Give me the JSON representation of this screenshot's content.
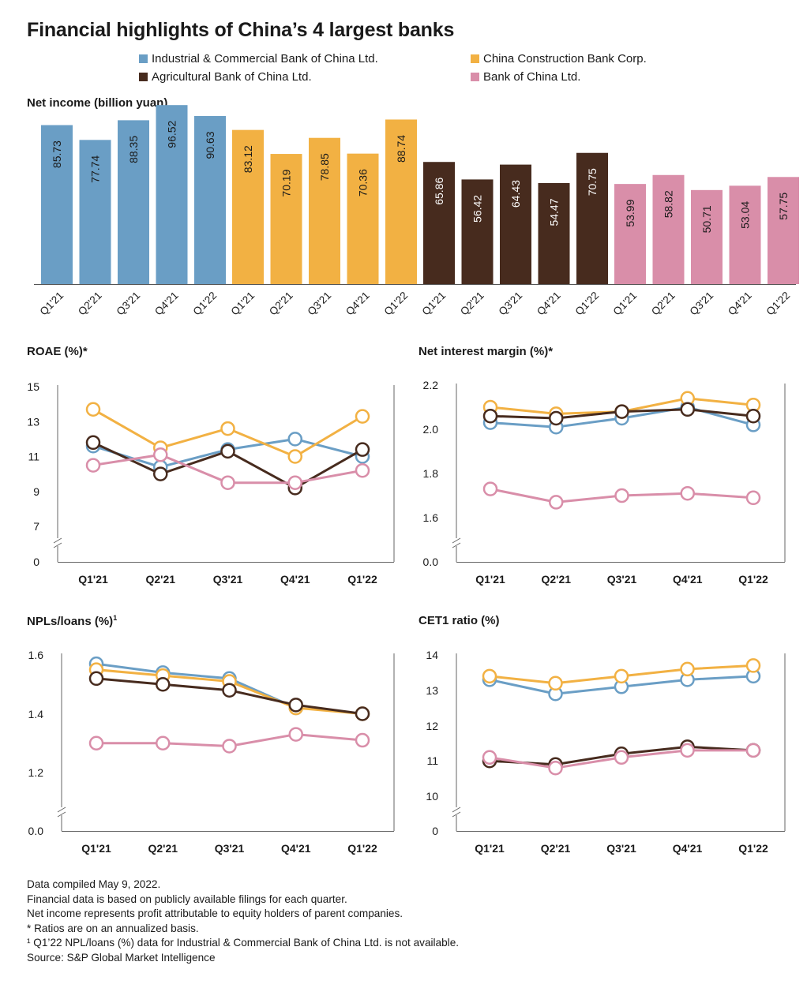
{
  "title": "Financial highlights of China’s 4 largest banks",
  "legend": [
    {
      "label": "Industrial & Commercial Bank of China Ltd.",
      "color": "#6a9ec5"
    },
    {
      "label": "China Construction Bank Corp.",
      "color": "#f2b143"
    },
    {
      "label": "Agricultural Bank of China Ltd.",
      "color": "#472b1e"
    },
    {
      "label": "Bank of China Ltd.",
      "color": "#d98ea9"
    }
  ],
  "sections": {
    "net_income": "Net income (billion yuan)",
    "roae": "ROAE (%)*",
    "nim": "Net interest margin (%)*",
    "npl": "NPLs/loans (%)",
    "npl_sup": "1",
    "cet1": "CET1 ratio (%)"
  },
  "notes": [
    "Data compiled May 9, 2022.",
    "Financial data is based on publicly available filings for each quarter.",
    "Net income represents profit attributable to equity holders of parent companies.",
    "* Ratios are on an annualized basis.",
    "¹ Q1’22 NPL/loans (%) data for Industrial & Commercial Bank of China Ltd. is not available.",
    "Source: S&P Global Market Intelligence"
  ],
  "chart_data": [
    {
      "type": "bar",
      "title": "Net income (billion yuan)",
      "categories": [
        "Q1'21",
        "Q2'21",
        "Q3'21",
        "Q4'21",
        "Q1'22"
      ],
      "series": [
        {
          "name": "Industrial & Commercial Bank of China Ltd.",
          "color": "#6a9ec5",
          "values": [
            85.73,
            77.74,
            88.35,
            96.52,
            90.63
          ]
        },
        {
          "name": "China Construction Bank Corp.",
          "color": "#f2b143",
          "values": [
            83.12,
            70.19,
            78.85,
            70.36,
            88.74
          ]
        },
        {
          "name": "Agricultural Bank of China Ltd.",
          "color": "#472b1e",
          "values": [
            65.86,
            56.42,
            64.43,
            54.47,
            70.75
          ]
        },
        {
          "name": "Bank of China Ltd.",
          "color": "#d98ea9",
          "values": [
            53.99,
            58.82,
            50.71,
            53.04,
            57.75
          ]
        }
      ],
      "value_labels": [
        [
          "85.73",
          "77.74",
          "88.35",
          "96.52",
          "90.63"
        ],
        [
          "83.12",
          "70.19",
          "78.85",
          "70.36",
          "88.74"
        ],
        [
          "65.86",
          "56.42",
          "64.43",
          "54.47",
          "70.75"
        ],
        [
          "53.99",
          "58.82",
          "50.71",
          "53.04",
          "57.75"
        ]
      ],
      "ylim": [
        0,
        100
      ]
    },
    {
      "type": "line",
      "title": "ROAE (%)*",
      "categories": [
        "Q1'21",
        "Q2'21",
        "Q3'21",
        "Q4'21",
        "Q1'22"
      ],
      "yticks": [
        "15",
        "13",
        "11",
        "9",
        "7",
        "0"
      ],
      "ylim": [
        6,
        15
      ],
      "axis_break": true,
      "series": [
        {
          "name": "Industrial & Commercial Bank of China Ltd.",
          "color": "#6a9ec5",
          "values": [
            11.6,
            10.4,
            11.4,
            12.0,
            11.0
          ]
        },
        {
          "name": "China Construction Bank Corp.",
          "color": "#f2b143",
          "values": [
            13.7,
            11.5,
            12.6,
            11.0,
            13.3
          ]
        },
        {
          "name": "Agricultural Bank of China Ltd.",
          "color": "#472b1e",
          "values": [
            11.8,
            10.0,
            11.3,
            9.2,
            11.4
          ]
        },
        {
          "name": "Bank of China Ltd.",
          "color": "#d98ea9",
          "values": [
            10.5,
            11.1,
            9.5,
            9.5,
            10.2
          ]
        }
      ]
    },
    {
      "type": "line",
      "title": "Net interest margin (%)*",
      "categories": [
        "Q1'21",
        "Q2'21",
        "Q3'21",
        "Q4'21",
        "Q1'22"
      ],
      "yticks": [
        "2.2",
        "2.0",
        "1.8",
        "1.6",
        "0.0"
      ],
      "ylim": [
        1.5,
        2.2
      ],
      "axis_break": true,
      "series": [
        {
          "name": "Industrial & Commercial Bank of China Ltd.",
          "color": "#6a9ec5",
          "values": [
            2.03,
            2.01,
            2.05,
            2.1,
            2.02
          ]
        },
        {
          "name": "China Construction Bank Corp.",
          "color": "#f2b143",
          "values": [
            2.1,
            2.07,
            2.08,
            2.14,
            2.11
          ]
        },
        {
          "name": "Agricultural Bank of China Ltd.",
          "color": "#472b1e",
          "values": [
            2.06,
            2.05,
            2.08,
            2.09,
            2.06
          ]
        },
        {
          "name": "Bank of China Ltd.",
          "color": "#d98ea9",
          "values": [
            1.73,
            1.67,
            1.7,
            1.71,
            1.69
          ]
        }
      ]
    },
    {
      "type": "line",
      "title": "NPLs/loans (%)¹",
      "categories": [
        "Q1'21",
        "Q2'21",
        "Q3'21",
        "Q4'21",
        "Q1'22"
      ],
      "yticks": [
        "1.6",
        "1.4",
        "1.2",
        "0.0"
      ],
      "ylim": [
        1.1,
        1.6
      ],
      "axis_break": true,
      "series": [
        {
          "name": "Industrial & Commercial Bank of China Ltd.",
          "color": "#6a9ec5",
          "values": [
            1.57,
            1.54,
            1.52,
            1.42,
            null
          ]
        },
        {
          "name": "China Construction Bank Corp.",
          "color": "#f2b143",
          "values": [
            1.55,
            1.53,
            1.51,
            1.42,
            1.4
          ]
        },
        {
          "name": "Agricultural Bank of China Ltd.",
          "color": "#472b1e",
          "values": [
            1.52,
            1.5,
            1.48,
            1.43,
            1.4
          ]
        },
        {
          "name": "Bank of China Ltd.",
          "color": "#d98ea9",
          "values": [
            1.3,
            1.3,
            1.29,
            1.33,
            1.31
          ]
        }
      ]
    },
    {
      "type": "line",
      "title": "CET1 ratio (%)",
      "categories": [
        "Q1'21",
        "Q2'21",
        "Q3'21",
        "Q4'21",
        "Q1'22"
      ],
      "yticks": [
        "14",
        "13",
        "12",
        "11",
        "10",
        "0"
      ],
      "ylim": [
        9,
        14
      ],
      "axis_break": true,
      "series": [
        {
          "name": "Industrial & Commercial Bank of China Ltd.",
          "color": "#6a9ec5",
          "values": [
            13.3,
            12.9,
            13.1,
            13.3,
            13.4
          ]
        },
        {
          "name": "China Construction Bank Corp.",
          "color": "#f2b143",
          "values": [
            13.4,
            13.2,
            13.4,
            13.6,
            13.7
          ]
        },
        {
          "name": "Agricultural Bank of China Ltd.",
          "color": "#472b1e",
          "values": [
            11.0,
            10.9,
            11.2,
            11.4,
            11.3
          ]
        },
        {
          "name": "Bank of China Ltd.",
          "color": "#d98ea9",
          "values": [
            11.1,
            10.8,
            11.1,
            11.3,
            11.3
          ]
        }
      ]
    }
  ]
}
